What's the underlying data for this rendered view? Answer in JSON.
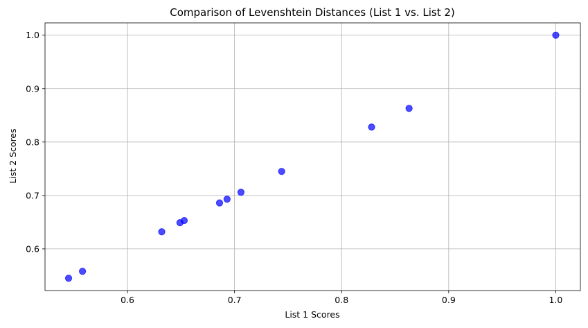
{
  "chart_data": {
    "type": "scatter",
    "title": "Comparison of Levenshtein Distances (List 1 vs. List 2)",
    "xlabel": "List 1 Scores",
    "ylabel": "List 2 Scores",
    "xlim": [
      0.523,
      1.023
    ],
    "ylim": [
      0.522,
      1.023
    ],
    "xticks": [
      0.6,
      0.7,
      0.8,
      0.9,
      1.0
    ],
    "yticks": [
      0.6,
      0.7,
      0.8,
      0.9,
      1.0
    ],
    "xtick_labels": [
      "0.6",
      "0.7",
      "0.8",
      "0.9",
      "1.0"
    ],
    "ytick_labels": [
      "0.6",
      "0.7",
      "0.8",
      "0.9",
      "1.0"
    ],
    "grid": true,
    "marker_color": "#0000ff",
    "x": [
      0.545,
      0.558,
      0.632,
      0.649,
      0.653,
      0.686,
      0.693,
      0.706,
      0.744,
      0.828,
      0.863,
      1.0
    ],
    "y": [
      0.545,
      0.558,
      0.632,
      0.649,
      0.653,
      0.686,
      0.693,
      0.706,
      0.745,
      0.828,
      0.863,
      1.0
    ]
  }
}
